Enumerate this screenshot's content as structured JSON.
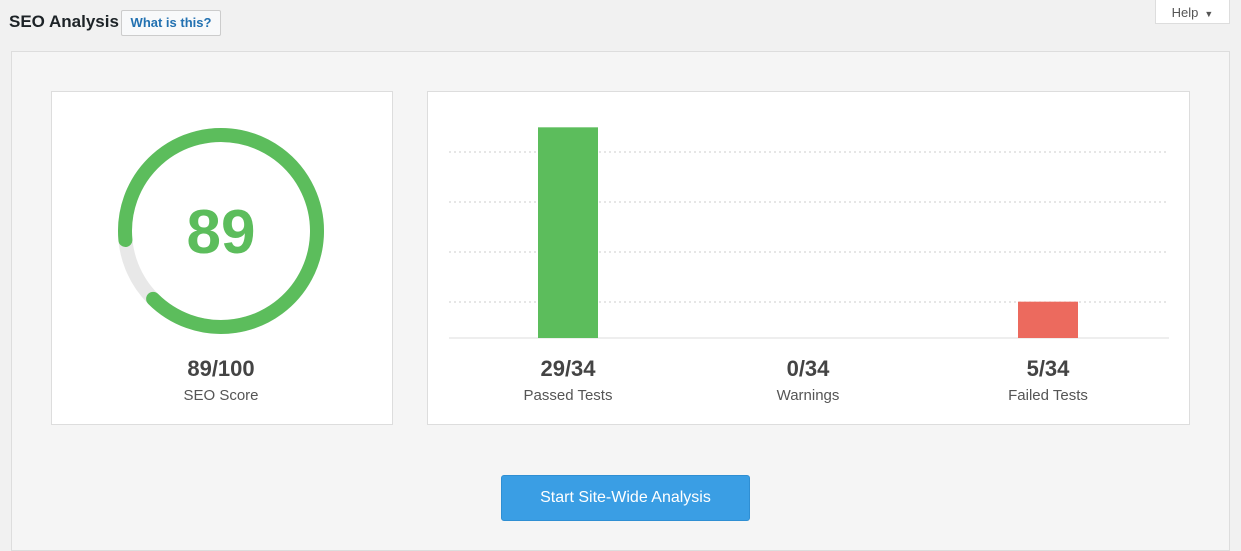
{
  "header": {
    "title": "SEO Analysis",
    "what_is_this": "What is this?",
    "help": "Help"
  },
  "score": {
    "value": 89,
    "max": 100,
    "label": "89/100",
    "caption": "SEO Score",
    "color": "#5cbd5c"
  },
  "tests": {
    "total": 34,
    "items": [
      {
        "name": "Passed Tests",
        "value": 29,
        "label": "29/34",
        "color": "#5cbd5c"
      },
      {
        "name": "Warnings",
        "value": 0,
        "label": "0/34",
        "color": "#f0ad4e"
      },
      {
        "name": "Failed Tests",
        "value": 5,
        "label": "5/34",
        "color": "#ec6a5e"
      }
    ]
  },
  "button": "Start Site-Wide Analysis"
}
